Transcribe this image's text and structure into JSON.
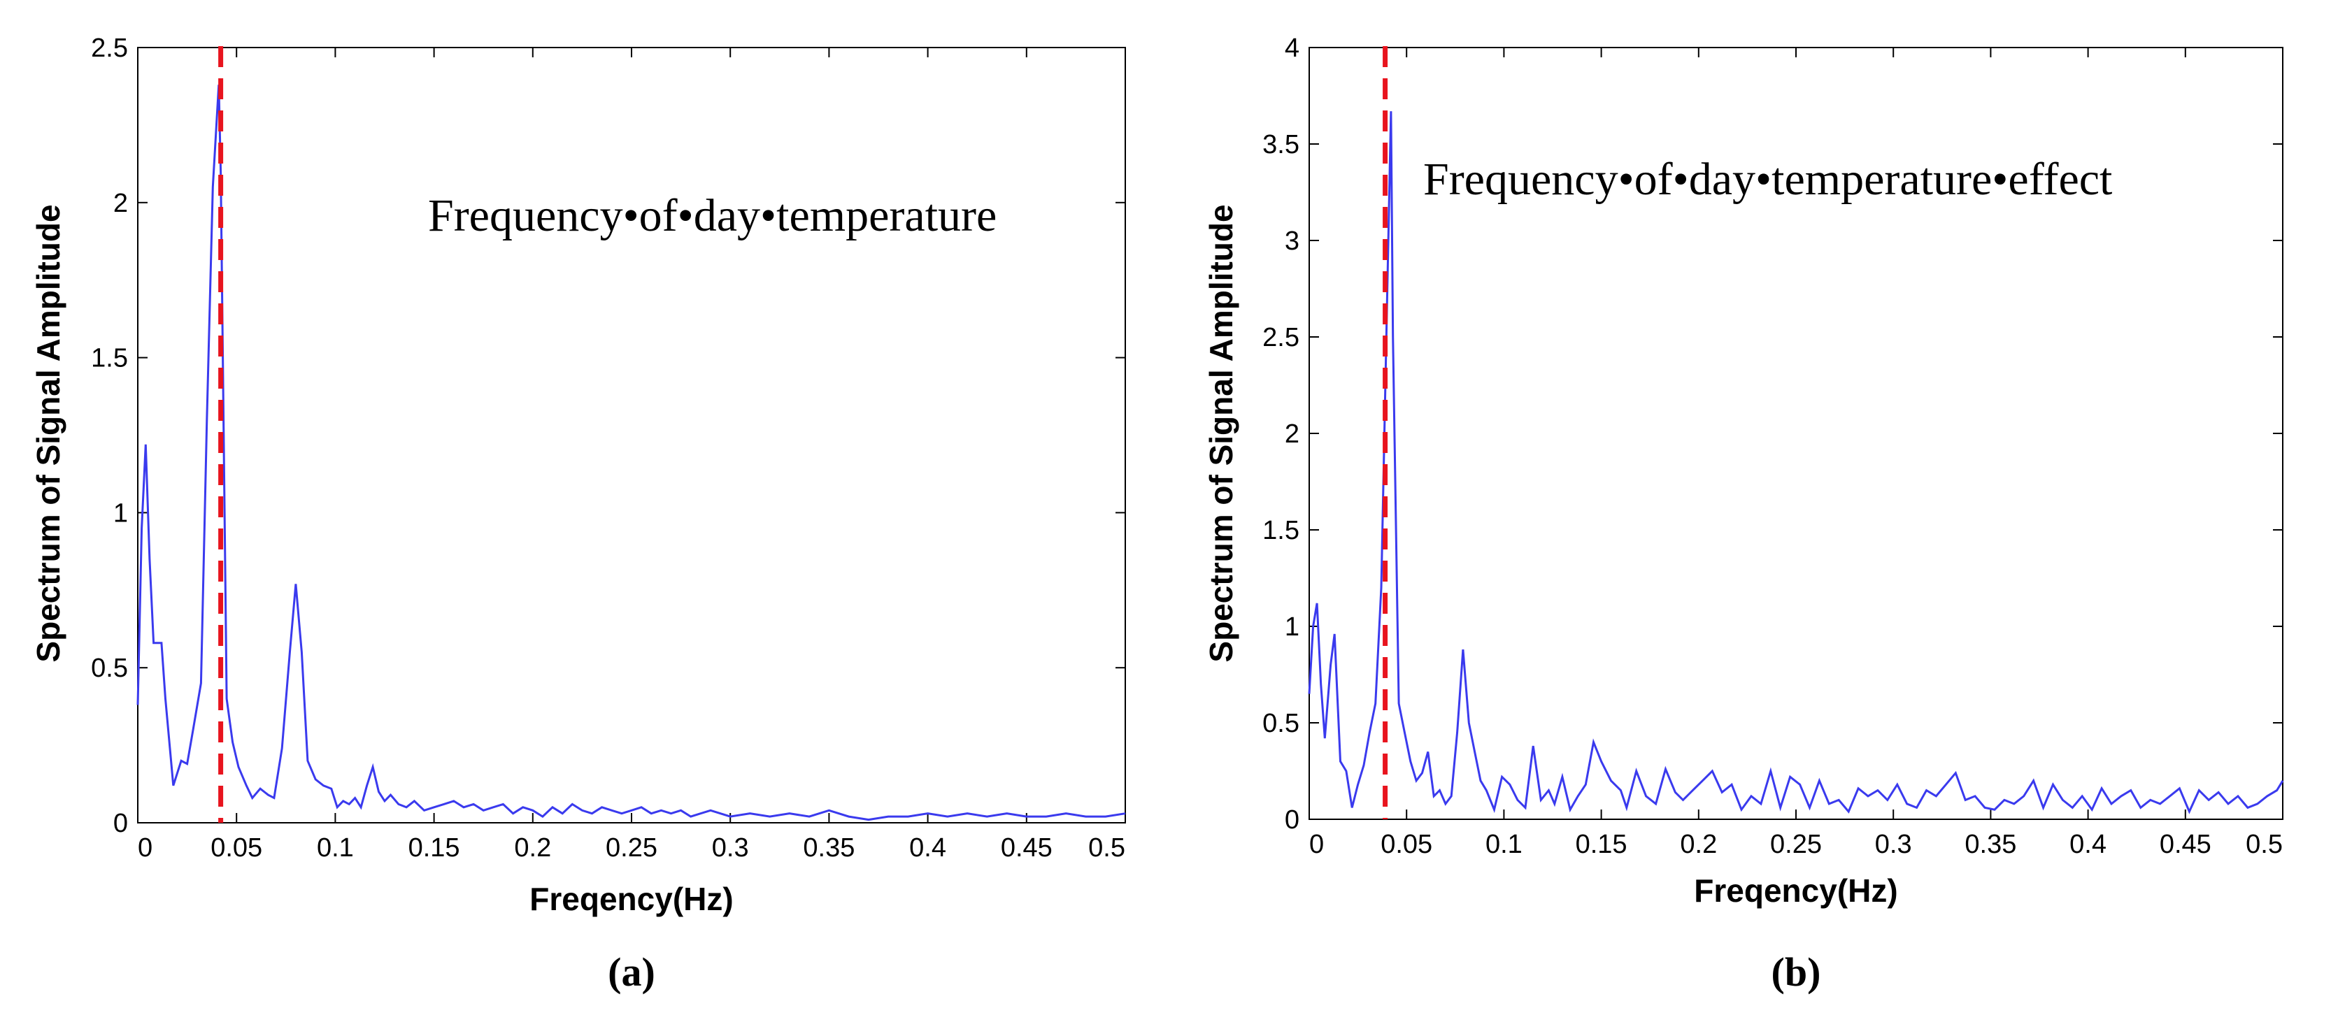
{
  "chart_data": [
    {
      "type": "line",
      "panel_label": "(a)",
      "annotation": "Frequency•of•day•temperature",
      "xlabel": "Freqency(Hz)",
      "ylabel": "Spectrum of Signal Amplitude",
      "xlim": [
        0,
        0.5
      ],
      "ylim": [
        0,
        2.5
      ],
      "xticks": [
        0,
        0.05,
        0.1,
        0.15,
        0.2,
        0.25,
        0.3,
        0.35,
        0.4,
        0.45,
        0.5
      ],
      "xtick_labels": [
        "0",
        "0.05",
        "0.1",
        "0.15",
        "0.2",
        "0.25",
        "0.3",
        "0.35",
        "0.4",
        "0.45",
        "0.5"
      ],
      "yticks": [
        0,
        0.5,
        1,
        1.5,
        2,
        2.5
      ],
      "ytick_labels": [
        "0",
        "0.5",
        "1",
        "1.5",
        "2",
        "2.5"
      ],
      "marker_line": {
        "x": 0.042,
        "color": "#e8141e",
        "style": "dashed"
      },
      "series": [
        {
          "name": "spectrum",
          "color": "#3a3aee",
          "x": [
            0,
            0.002,
            0.004,
            0.006,
            0.008,
            0.012,
            0.014,
            0.018,
            0.022,
            0.025,
            0.028,
            0.032,
            0.035,
            0.038,
            0.041,
            0.042,
            0.045,
            0.048,
            0.051,
            0.055,
            0.058,
            0.062,
            0.066,
            0.069,
            0.073,
            0.077,
            0.08,
            0.083,
            0.086,
            0.09,
            0.094,
            0.098,
            0.101,
            0.104,
            0.107,
            0.11,
            0.113,
            0.116,
            0.119,
            0.122,
            0.125,
            0.128,
            0.132,
            0.136,
            0.14,
            0.145,
            0.15,
            0.155,
            0.16,
            0.165,
            0.17,
            0.175,
            0.18,
            0.185,
            0.19,
            0.195,
            0.2,
            0.205,
            0.21,
            0.215,
            0.22,
            0.225,
            0.23,
            0.235,
            0.24,
            0.245,
            0.25,
            0.255,
            0.26,
            0.265,
            0.27,
            0.275,
            0.28,
            0.285,
            0.29,
            0.295,
            0.3,
            0.31,
            0.32,
            0.33,
            0.34,
            0.35,
            0.36,
            0.37,
            0.38,
            0.39,
            0.4,
            0.41,
            0.42,
            0.43,
            0.44,
            0.45,
            0.46,
            0.47,
            0.48,
            0.49,
            0.5
          ],
          "y": [
            0.38,
            0.95,
            1.22,
            0.85,
            0.58,
            0.58,
            0.4,
            0.12,
            0.2,
            0.19,
            0.3,
            0.45,
            1.3,
            2.05,
            2.38,
            2.1,
            0.4,
            0.26,
            0.18,
            0.12,
            0.08,
            0.11,
            0.09,
            0.08,
            0.24,
            0.55,
            0.77,
            0.55,
            0.2,
            0.14,
            0.12,
            0.11,
            0.05,
            0.07,
            0.06,
            0.08,
            0.05,
            0.12,
            0.18,
            0.1,
            0.07,
            0.09,
            0.06,
            0.05,
            0.07,
            0.04,
            0.05,
            0.06,
            0.07,
            0.05,
            0.06,
            0.04,
            0.05,
            0.06,
            0.03,
            0.05,
            0.04,
            0.02,
            0.05,
            0.03,
            0.06,
            0.04,
            0.03,
            0.05,
            0.04,
            0.03,
            0.04,
            0.05,
            0.03,
            0.04,
            0.03,
            0.04,
            0.02,
            0.03,
            0.04,
            0.03,
            0.02,
            0.03,
            0.02,
            0.03,
            0.02,
            0.04,
            0.02,
            0.01,
            0.02,
            0.02,
            0.03,
            0.02,
            0.03,
            0.02,
            0.03,
            0.02,
            0.02,
            0.03,
            0.02,
            0.02,
            0.03
          ]
        }
      ]
    },
    {
      "type": "line",
      "panel_label": "(b)",
      "annotation": "Frequency•of•day•temperature•effect",
      "xlabel": "Freqency(Hz)",
      "ylabel": "Spectrum of Signal Amplitude",
      "xlim": [
        0,
        0.5
      ],
      "ylim": [
        0,
        4
      ],
      "xticks": [
        0,
        0.05,
        0.1,
        0.15,
        0.2,
        0.25,
        0.3,
        0.35,
        0.4,
        0.45,
        0.5
      ],
      "xtick_labels": [
        "0",
        "0.05",
        "0.1",
        "0.15",
        "0.2",
        "0.25",
        "0.3",
        "0.35",
        "0.4",
        "0.45",
        "0.5"
      ],
      "yticks": [
        0,
        0.5,
        1,
        1.5,
        2,
        2.5,
        3,
        3.5,
        4
      ],
      "ytick_labels": [
        "0",
        "0.5",
        "1",
        "1.5",
        "2",
        "2.5",
        "3",
        "3.5",
        "4"
      ],
      "marker_line": {
        "x": 0.039,
        "color": "#e8141e",
        "style": "dashed"
      },
      "series": [
        {
          "name": "spectrum",
          "color": "#3a3aee",
          "x": [
            0,
            0.002,
            0.004,
            0.006,
            0.008,
            0.011,
            0.013,
            0.016,
            0.019,
            0.022,
            0.025,
            0.028,
            0.031,
            0.034,
            0.037,
            0.04,
            0.042,
            0.043,
            0.046,
            0.049,
            0.052,
            0.055,
            0.058,
            0.061,
            0.064,
            0.067,
            0.07,
            0.073,
            0.076,
            0.079,
            0.082,
            0.085,
            0.088,
            0.091,
            0.095,
            0.099,
            0.103,
            0.107,
            0.111,
            0.115,
            0.119,
            0.123,
            0.126,
            0.13,
            0.134,
            0.138,
            0.142,
            0.146,
            0.15,
            0.155,
            0.16,
            0.163,
            0.168,
            0.173,
            0.178,
            0.183,
            0.188,
            0.192,
            0.197,
            0.202,
            0.207,
            0.212,
            0.217,
            0.222,
            0.227,
            0.232,
            0.237,
            0.242,
            0.247,
            0.252,
            0.257,
            0.262,
            0.267,
            0.272,
            0.277,
            0.282,
            0.287,
            0.292,
            0.297,
            0.302,
            0.307,
            0.312,
            0.317,
            0.322,
            0.327,
            0.332,
            0.337,
            0.342,
            0.347,
            0.352,
            0.357,
            0.362,
            0.367,
            0.372,
            0.377,
            0.382,
            0.387,
            0.392,
            0.397,
            0.402,
            0.407,
            0.412,
            0.417,
            0.422,
            0.427,
            0.432,
            0.437,
            0.442,
            0.447,
            0.452,
            0.457,
            0.462,
            0.467,
            0.472,
            0.477,
            0.482,
            0.487,
            0.492,
            0.497,
            0.5
          ],
          "y": [
            0.65,
            1.0,
            1.12,
            0.7,
            0.42,
            0.8,
            0.96,
            0.3,
            0.25,
            0.06,
            0.18,
            0.28,
            0.45,
            0.6,
            1.2,
            2.7,
            3.67,
            2.5,
            0.6,
            0.45,
            0.3,
            0.2,
            0.24,
            0.35,
            0.12,
            0.15,
            0.08,
            0.12,
            0.45,
            0.88,
            0.5,
            0.35,
            0.2,
            0.15,
            0.05,
            0.22,
            0.18,
            0.1,
            0.06,
            0.38,
            0.1,
            0.15,
            0.08,
            0.22,
            0.05,
            0.12,
            0.18,
            0.4,
            0.3,
            0.2,
            0.15,
            0.06,
            0.25,
            0.12,
            0.08,
            0.26,
            0.14,
            0.1,
            0.15,
            0.2,
            0.25,
            0.14,
            0.18,
            0.05,
            0.12,
            0.08,
            0.25,
            0.06,
            0.22,
            0.18,
            0.06,
            0.2,
            0.08,
            0.1,
            0.04,
            0.16,
            0.12,
            0.15,
            0.1,
            0.18,
            0.08,
            0.06,
            0.15,
            0.12,
            0.18,
            0.24,
            0.1,
            0.12,
            0.06,
            0.05,
            0.1,
            0.08,
            0.12,
            0.2,
            0.06,
            0.18,
            0.1,
            0.06,
            0.12,
            0.05,
            0.16,
            0.08,
            0.12,
            0.15,
            0.06,
            0.1,
            0.08,
            0.12,
            0.16,
            0.04,
            0.15,
            0.1,
            0.14,
            0.08,
            0.12,
            0.06,
            0.08,
            0.12,
            0.15,
            0.2
          ]
        }
      ]
    }
  ]
}
